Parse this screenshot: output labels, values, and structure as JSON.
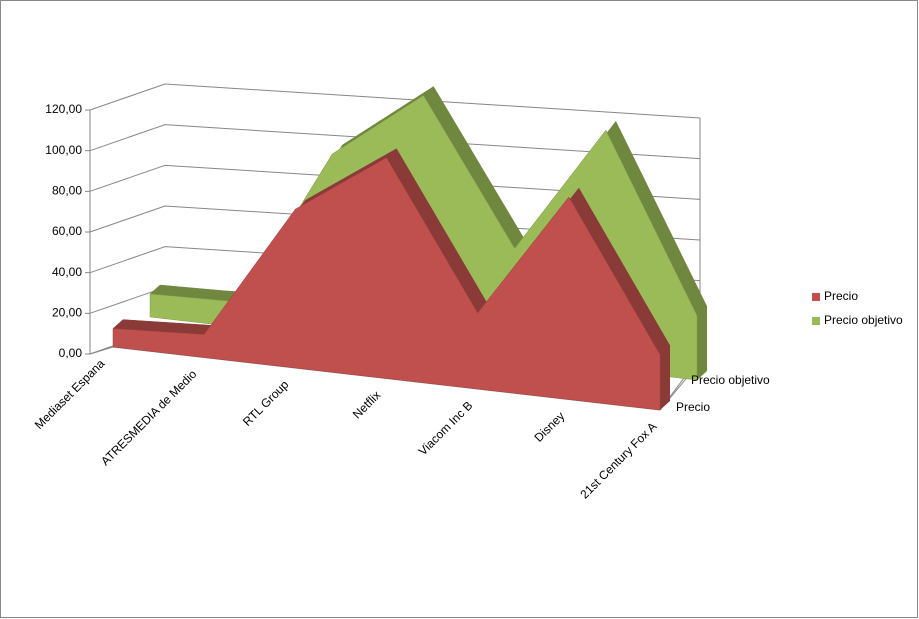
{
  "chart_data": {
    "type": "area3d",
    "categories": [
      "Mediaset Espana",
      "ATRESMEDIA de Medio",
      "RTL Group",
      "Netflix",
      "Viacom Inc B",
      "Disney",
      "21st Century Fox A"
    ],
    "series": [
      {
        "name": "Precio",
        "color": "#c0504d",
        "values": [
          8,
          10,
          69,
          96,
          33,
          88,
          24
        ]
      },
      {
        "name": "Precio objetivo",
        "color": "#9bbb59",
        "values": [
          10,
          11,
          80,
          110,
          48,
          104,
          28
        ]
      }
    ],
    "ylim": [
      0,
      120
    ],
    "yticks": [
      {
        "value": 0,
        "label": "0,00"
      },
      {
        "value": 20,
        "label": "20,00"
      },
      {
        "value": 40,
        "label": "40,00"
      },
      {
        "value": 60,
        "label": "60,00"
      },
      {
        "value": 80,
        "label": "80,00"
      },
      {
        "value": 100,
        "label": "100,00"
      },
      {
        "value": 120,
        "label": "120,00"
      }
    ],
    "grid": true,
    "legend": "right"
  }
}
